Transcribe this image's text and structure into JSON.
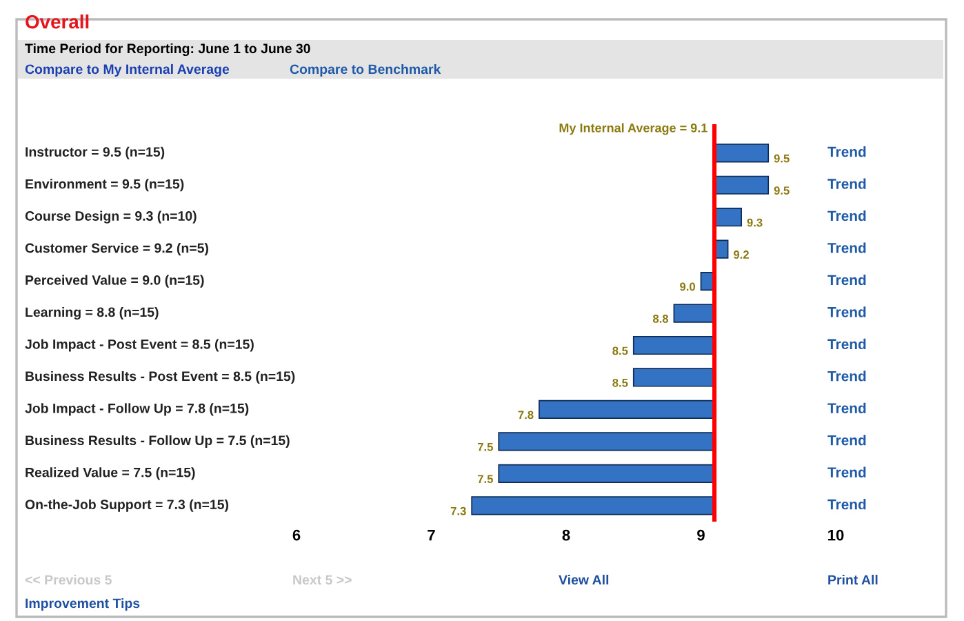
{
  "chart_data": {
    "type": "bar",
    "orientation": "horizontal",
    "title": "Overall",
    "subtitle": "Time Period for Reporting: June 1 to June 30",
    "categories": [
      "Instructor = 9.5 (n=15)",
      "Environment = 9.5 (n=15)",
      "Course Design = 9.3 (n=10)",
      "Customer Service = 9.2 (n=5)",
      "Perceived Value = 9.0 (n=15)",
      "Learning = 8.8 (n=15)",
      "Job Impact - Post Event = 8.5 (n=15)",
      "Business Results - Post Event = 8.5 (n=15)",
      "Job Impact - Follow Up = 7.8 (n=15)",
      "Business Results - Follow Up = 7.5 (n=15)",
      "Realized Value = 7.5 (n=15)",
      "On-the-Job Support = 7.3 (n=15)"
    ],
    "base": [
      9.1,
      9.1,
      9.1,
      9.1,
      9.1,
      9.1,
      9.1,
      9.1,
      9.1,
      9.1,
      9.1,
      9.1
    ],
    "values": [
      0.4,
      0.4,
      0.2,
      0.1,
      -0.1,
      -0.3,
      -0.6,
      -0.6,
      -1.3,
      -1.6,
      -1.6,
      -1.8
    ],
    "value_labels": [
      "9.5",
      "9.5",
      "9.3",
      "9.2",
      "9.0",
      "8.8",
      "8.5",
      "8.5",
      "7.8",
      "7.5",
      "7.5",
      "7.3"
    ],
    "color": "#3473c4",
    "xlim": [
      6,
      10
    ],
    "xticks": [
      6,
      7,
      8,
      9,
      10
    ],
    "grid": false,
    "ref_lines": [
      {
        "axis": "x",
        "value": 9.1,
        "label": "My Internal Average = 9.1",
        "color": "#ff0000"
      }
    ],
    "annotations": [
      "Compare to My Internal Average",
      "Compare to Benchmark",
      "Trend",
      "Trend",
      "Trend",
      "Trend",
      "Trend",
      "Trend",
      "Trend",
      "Trend",
      "Trend",
      "Trend",
      "Trend",
      "Trend",
      "<< Previous 5",
      "Next 5 >>",
      "View All",
      "Print All",
      "Improvement Tips"
    ]
  }
}
